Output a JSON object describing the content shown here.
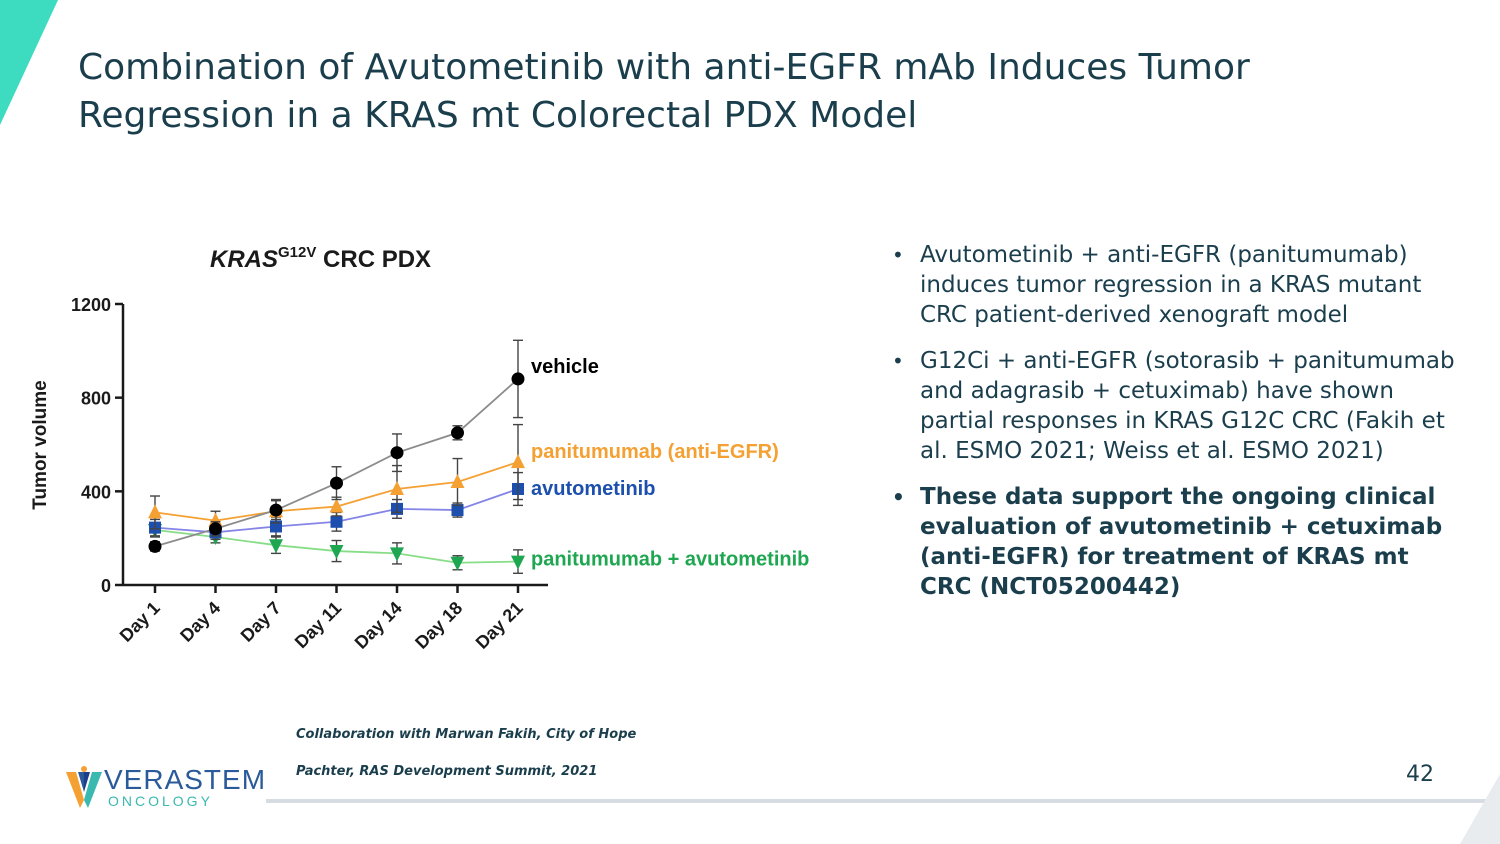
{
  "slide": {
    "title_line1": "Combination of Avutometinib with anti-EGFR mAb Induces Tumor",
    "title_line2": "Regression in a KRAS mt Colorectal PDX Model",
    "page_number": "42",
    "notes": [
      "Collaboration with Marwan Fakih, City of Hope",
      "Pachter, RAS Development Summit, 2021"
    ],
    "logo": {
      "name": "VERASTEM",
      "tagline": "ONCOLOGY",
      "icon": "verastem-v-icon"
    },
    "bullets": [
      {
        "text": "Avutometinib + anti-EGFR (panitumumab) induces tumor regression in a KRAS mutant CRC patient-derived xenograft model",
        "bold": false
      },
      {
        "text": "G12Ci + anti-EGFR (sotorasib + panitumumab and adagrasib + cetuximab) have shown partial responses in KRAS G12C CRC (Fakih et al. ESMO 2021; Weiss et al. ESMO 2021)",
        "bold": false
      },
      {
        "text": "These data support the ongoing clinical evaluation of avutometinib + cetuximab (anti-EGFR) for treatment of KRAS mt CRC (NCT05200442)",
        "bold": true
      }
    ],
    "colors": {
      "title": "#1b3e4d",
      "accent_teal": "#3ddbc0",
      "footer_line": "#d6dce2"
    }
  },
  "chart_data": {
    "type": "line",
    "title_main": "KRAS",
    "title_superscript": "G12V",
    "title_rest": " CRC PDX",
    "ylabel": "Tumor volume",
    "xlabel": "",
    "categories": [
      "Day 1",
      "Day 4",
      "Day 7",
      "Day 11",
      "Day 14",
      "Day 18",
      "Day 21"
    ],
    "ylim": [
      0,
      1200
    ],
    "yticks": [
      0,
      400,
      800,
      1200
    ],
    "grid": false,
    "legend": "inline-right",
    "series": [
      {
        "name": "vehicle",
        "color": "#000000",
        "line_color": "#8c8c8c",
        "marker": "circle",
        "values": [
          165,
          240,
          320,
          435,
          565,
          650,
          880
        ],
        "err": [
          20,
          30,
          40,
          70,
          80,
          30,
          165
        ]
      },
      {
        "name": "panitumumab (anti-EGFR)",
        "color": "#f5a033",
        "line_color": "#f5a033",
        "marker": "triangle-up",
        "values": [
          310,
          275,
          315,
          335,
          410,
          440,
          525
        ],
        "err": [
          70,
          40,
          50,
          40,
          100,
          100,
          160
        ]
      },
      {
        "name": "avutometinib",
        "color": "#1c4fae",
        "line_color": "#8585e8",
        "marker": "square",
        "values": [
          245,
          225,
          250,
          270,
          325,
          320,
          410
        ],
        "err": [
          35,
          30,
          40,
          40,
          40,
          30,
          70
        ]
      },
      {
        "name": "panitumumab + avutometinib",
        "color": "#1fa651",
        "line_color": "#88dd88",
        "marker": "triangle-down",
        "values": [
          235,
          205,
          170,
          145,
          135,
          95,
          100
        ],
        "err": [
          30,
          25,
          35,
          45,
          45,
          30,
          50
        ]
      }
    ]
  }
}
